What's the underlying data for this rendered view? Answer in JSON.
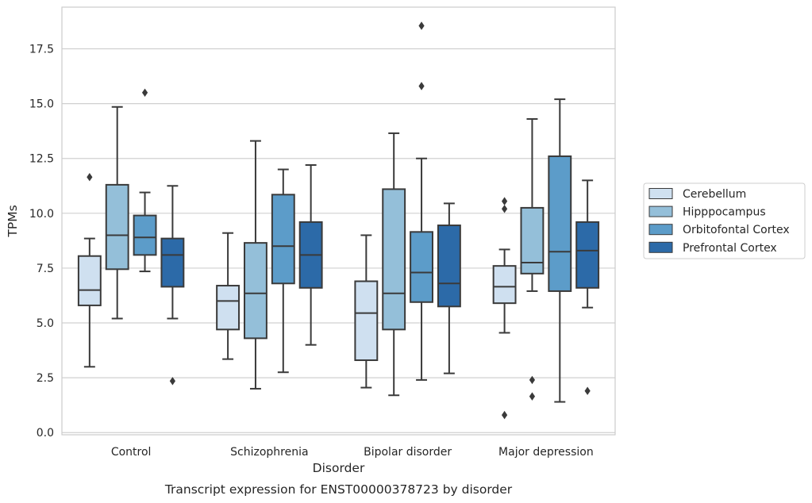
{
  "chart_data": {
    "type": "box",
    "title": "Transcript expression for ENST00000378723 by disorder",
    "xlabel": "Disorder",
    "ylabel": "TPMs",
    "ylim": [
      -0.1,
      19.4
    ],
    "yticks": [
      "0.0",
      "2.5",
      "5.0",
      "7.5",
      "10.0",
      "12.5",
      "15.0",
      "17.5"
    ],
    "grid": true,
    "legend_position": "right",
    "categories": [
      "Control",
      "Schizophrenia",
      "Bipolar disorder",
      "Major depression"
    ],
    "series": [
      {
        "name": "Cerebellum",
        "color": "#cfe0f0",
        "boxes": [
          {
            "whisker_low": 3.0,
            "q1": 5.8,
            "median": 6.5,
            "q3": 8.05,
            "whisker_high": 8.85,
            "outliers": [
              11.65
            ]
          },
          {
            "whisker_low": 3.35,
            "q1": 4.7,
            "median": 6.0,
            "q3": 6.7,
            "whisker_high": 9.1,
            "outliers": []
          },
          {
            "whisker_low": 2.05,
            "q1": 3.3,
            "median": 5.45,
            "q3": 6.9,
            "whisker_high": 9.0,
            "outliers": []
          },
          {
            "whisker_low": 4.55,
            "q1": 5.9,
            "median": 6.65,
            "q3": 7.6,
            "whisker_high": 8.35,
            "outliers": [
              10.55,
              10.2,
              0.8
            ]
          }
        ]
      },
      {
        "name": "Hipppocampus",
        "color": "#94bfd9",
        "boxes": [
          {
            "whisker_low": 5.2,
            "q1": 7.45,
            "median": 9.0,
            "q3": 11.3,
            "whisker_high": 14.85,
            "outliers": []
          },
          {
            "whisker_low": 2.0,
            "q1": 4.3,
            "median": 6.35,
            "q3": 8.65,
            "whisker_high": 13.3,
            "outliers": []
          },
          {
            "whisker_low": 1.7,
            "q1": 4.7,
            "median": 6.35,
            "q3": 11.1,
            "whisker_high": 13.65,
            "outliers": []
          },
          {
            "whisker_low": 6.45,
            "q1": 7.25,
            "median": 7.75,
            "q3": 10.25,
            "whisker_high": 14.3,
            "outliers": [
              2.4,
              1.65
            ]
          }
        ]
      },
      {
        "name": "Orbitofontal Cortex",
        "color": "#5c9cc9",
        "boxes": [
          {
            "whisker_low": 7.35,
            "q1": 8.1,
            "median": 8.9,
            "q3": 9.9,
            "whisker_high": 10.95,
            "outliers": [
              15.5
            ]
          },
          {
            "whisker_low": 2.75,
            "q1": 6.8,
            "median": 8.5,
            "q3": 10.85,
            "whisker_high": 12.0,
            "outliers": []
          },
          {
            "whisker_low": 2.4,
            "q1": 5.95,
            "median": 7.3,
            "q3": 9.15,
            "whisker_high": 12.5,
            "outliers": [
              15.8,
              18.55
            ]
          },
          {
            "whisker_low": 1.4,
            "q1": 6.45,
            "median": 8.25,
            "q3": 12.6,
            "whisker_high": 15.2,
            "outliers": []
          }
        ]
      },
      {
        "name": "Prefrontal Cortex",
        "color": "#2c6aa8",
        "boxes": [
          {
            "whisker_low": 5.2,
            "q1": 6.65,
            "median": 8.1,
            "q3": 8.85,
            "whisker_high": 11.25,
            "outliers": [
              2.35
            ]
          },
          {
            "whisker_low": 4.0,
            "q1": 6.6,
            "median": 8.1,
            "q3": 9.6,
            "whisker_high": 12.2,
            "outliers": []
          },
          {
            "whisker_low": 2.7,
            "q1": 5.75,
            "median": 6.8,
            "q3": 9.45,
            "whisker_high": 10.45,
            "outliers": []
          },
          {
            "whisker_low": 5.7,
            "q1": 6.6,
            "median": 8.3,
            "q3": 9.6,
            "whisker_high": 11.5,
            "outliers": [
              1.9
            ]
          }
        ]
      }
    ]
  }
}
